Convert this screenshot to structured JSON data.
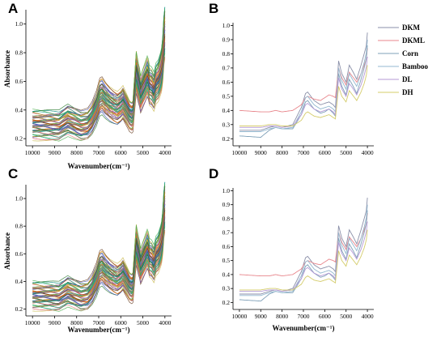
{
  "chart_data": [
    {
      "panel": "A",
      "type": "line",
      "xlabel": "Wavenumber(cm⁻¹)",
      "ylabel": "Absorbance",
      "xlim": [
        10300,
        3700
      ],
      "ylim": [
        0.15,
        1.1
      ],
      "xticks": [
        10000,
        9000,
        8000,
        7000,
        6000,
        5000,
        4000
      ],
      "yticks": [
        0.2,
        0.4,
        0.6,
        0.8,
        1.0
      ],
      "ytick_labels": [
        "0.2",
        "0.4",
        "0.6",
        "0.8",
        "1.0"
      ],
      "profile": {
        "x": [
          10000,
          9300,
          8800,
          8600,
          8400,
          8250,
          8100,
          7800,
          7500,
          7300,
          7100,
          6950,
          6850,
          6700,
          6500,
          6300,
          6150,
          6000,
          5900,
          5800,
          5700,
          5600,
          5500,
          5450,
          5300,
          5200,
          5150,
          5100,
          4900,
          4800,
          4750,
          4700,
          4600,
          4500,
          4400,
          4300,
          4200,
          4150,
          4100,
          4050,
          4000
        ],
        "y": [
          0.29,
          0.285,
          0.28,
          0.3,
          0.32,
          0.31,
          0.3,
          0.28,
          0.29,
          0.33,
          0.4,
          0.48,
          0.49,
          0.46,
          0.43,
          0.41,
          0.4,
          0.42,
          0.44,
          0.41,
          0.38,
          0.35,
          0.34,
          0.35,
          0.66,
          0.58,
          0.55,
          0.5,
          0.58,
          0.62,
          0.6,
          0.56,
          0.55,
          0.52,
          0.58,
          0.6,
          0.65,
          0.68,
          0.75,
          0.88,
          0.94
        ]
      },
      "curve_count": 60,
      "offset_range": [
        -0.07,
        0.09
      ],
      "palette": [
        "#c9b84a",
        "#4caf50",
        "#2e7d32",
        "#6b4226",
        "#d64550",
        "#e57373",
        "#3f51b5",
        "#7e57c2",
        "#26a69a",
        "#8d6e63",
        "#ef6c00",
        "#9e9d24",
        "#00897b",
        "#5c6bc0"
      ]
    },
    {
      "panel": "B",
      "type": "line",
      "xlim": [
        10300,
        3700
      ],
      "ylim": [
        0.15,
        1.02
      ],
      "xticks": [
        10000,
        9000,
        8000,
        7000,
        6000,
        5000,
        4000
      ],
      "yticks": [
        0.2,
        0.3,
        0.4,
        0.5,
        0.6,
        0.7,
        0.8,
        0.9,
        1.0
      ],
      "ytick_labels": [
        "0.2",
        "0.3",
        "0.4",
        "0.5",
        "0.6",
        "0.7",
        "0.8",
        "0.9",
        "1.0"
      ],
      "legend_position": "top-right-outside",
      "series": [
        {
          "name": "DKM",
          "color": "#8a8fa8",
          "x": [
            10000,
            9000,
            8600,
            8300,
            8000,
            7500,
            7100,
            6900,
            6800,
            6500,
            6200,
            6000,
            5800,
            5600,
            5500,
            5350,
            5200,
            5000,
            4850,
            4700,
            4500,
            4300,
            4150,
            4050,
            4000
          ],
          "y": [
            0.26,
            0.26,
            0.28,
            0.29,
            0.28,
            0.3,
            0.42,
            0.52,
            0.53,
            0.47,
            0.44,
            0.45,
            0.46,
            0.44,
            0.42,
            0.75,
            0.66,
            0.6,
            0.72,
            0.68,
            0.62,
            0.72,
            0.8,
            0.86,
            0.95
          ]
        },
        {
          "name": "DKML",
          "color": "#e8868c",
          "x": [
            10000,
            9000,
            8600,
            8300,
            8000,
            7500,
            7100,
            6900,
            6800,
            6500,
            6200,
            6000,
            5800,
            5600,
            5500,
            5350,
            5200,
            5000,
            4850,
            4700,
            4500,
            4300,
            4150,
            4050,
            4000
          ],
          "y": [
            0.4,
            0.39,
            0.39,
            0.4,
            0.39,
            0.4,
            0.44,
            0.49,
            0.5,
            0.48,
            0.47,
            0.49,
            0.51,
            0.5,
            0.49,
            0.7,
            0.63,
            0.58,
            0.67,
            0.64,
            0.6,
            0.66,
            0.72,
            0.77,
            0.84
          ]
        },
        {
          "name": "Corn",
          "color": "#7fa0b8",
          "x": [
            10000,
            9000,
            8600,
            8300,
            8000,
            7500,
            7100,
            6900,
            6800,
            6500,
            6200,
            6000,
            5800,
            5600,
            5500,
            5350,
            5200,
            5000,
            4850,
            4700,
            4500,
            4300,
            4150,
            4050,
            4000
          ],
          "y": [
            0.22,
            0.21,
            0.26,
            0.28,
            0.27,
            0.27,
            0.37,
            0.46,
            0.47,
            0.41,
            0.38,
            0.39,
            0.41,
            0.38,
            0.36,
            0.66,
            0.57,
            0.51,
            0.62,
            0.58,
            0.52,
            0.62,
            0.7,
            0.77,
            0.86
          ]
        },
        {
          "name": "Bamboo",
          "color": "#93b8d0",
          "x": [
            10000,
            9000,
            8600,
            8300,
            8000,
            7500,
            7100,
            6900,
            6800,
            6500,
            6200,
            6000,
            5800,
            5600,
            5500,
            5350,
            5200,
            5000,
            4850,
            4700,
            4500,
            4300,
            4150,
            4050,
            4000
          ],
          "y": [
            0.25,
            0.25,
            0.27,
            0.28,
            0.27,
            0.28,
            0.39,
            0.49,
            0.5,
            0.44,
            0.41,
            0.42,
            0.43,
            0.41,
            0.39,
            0.7,
            0.61,
            0.55,
            0.66,
            0.62,
            0.57,
            0.66,
            0.74,
            0.81,
            0.9
          ]
        },
        {
          "name": "DL",
          "color": "#b59ad6",
          "x": [
            10000,
            9000,
            8600,
            8300,
            8000,
            7500,
            7100,
            6900,
            6800,
            6500,
            6200,
            6000,
            5800,
            5600,
            5500,
            5350,
            5200,
            5000,
            4850,
            4700,
            4500,
            4300,
            4150,
            4050,
            4000
          ],
          "y": [
            0.28,
            0.28,
            0.29,
            0.29,
            0.28,
            0.29,
            0.37,
            0.44,
            0.45,
            0.41,
            0.39,
            0.4,
            0.41,
            0.39,
            0.37,
            0.63,
            0.55,
            0.5,
            0.59,
            0.56,
            0.51,
            0.58,
            0.65,
            0.71,
            0.78
          ]
        },
        {
          "name": "DH",
          "color": "#d4cc6a",
          "x": [
            10000,
            9000,
            8600,
            8300,
            8000,
            7500,
            7100,
            6900,
            6800,
            6500,
            6200,
            6000,
            5800,
            5600,
            5500,
            5350,
            5200,
            5000,
            4850,
            4700,
            4500,
            4300,
            4150,
            4050,
            4000
          ],
          "y": [
            0.29,
            0.29,
            0.3,
            0.3,
            0.29,
            0.29,
            0.33,
            0.38,
            0.39,
            0.36,
            0.35,
            0.36,
            0.37,
            0.35,
            0.34,
            0.57,
            0.5,
            0.46,
            0.54,
            0.51,
            0.47,
            0.53,
            0.59,
            0.65,
            0.72
          ]
        }
      ]
    },
    {
      "panel": "C",
      "type": "line",
      "xlabel": "Wavenumber(cm⁻¹)",
      "ylabel": "Absorbance",
      "xlim": [
        10300,
        3700
      ],
      "ylim": [
        0.15,
        1.1
      ],
      "xticks": [
        10000,
        9000,
        8000,
        7000,
        6000,
        5000,
        4000
      ],
      "yticks": [
        0.2,
        0.4,
        0.6,
        0.8,
        1.0
      ],
      "ytick_labels": [
        "0.2",
        "0.4",
        "0.6",
        "0.8",
        "1.0"
      ],
      "profile": {
        "x": [
          10000,
          9300,
          8800,
          8600,
          8400,
          8250,
          8100,
          7800,
          7500,
          7300,
          7100,
          6950,
          6850,
          6700,
          6500,
          6300,
          6150,
          6000,
          5900,
          5800,
          5700,
          5600,
          5500,
          5450,
          5300,
          5200,
          5150,
          5100,
          4900,
          4800,
          4750,
          4700,
          4600,
          4500,
          4400,
          4300,
          4200,
          4150,
          4100,
          4050,
          4000
        ],
        "y": [
          0.29,
          0.285,
          0.28,
          0.3,
          0.32,
          0.31,
          0.3,
          0.28,
          0.29,
          0.33,
          0.4,
          0.48,
          0.49,
          0.46,
          0.43,
          0.41,
          0.4,
          0.42,
          0.44,
          0.41,
          0.38,
          0.35,
          0.34,
          0.35,
          0.66,
          0.58,
          0.55,
          0.5,
          0.58,
          0.62,
          0.6,
          0.56,
          0.55,
          0.52,
          0.58,
          0.6,
          0.65,
          0.68,
          0.75,
          0.88,
          0.94
        ]
      },
      "curve_count": 60,
      "offset_range": [
        -0.07,
        0.09
      ],
      "palette": [
        "#c9b84a",
        "#4caf50",
        "#2e7d32",
        "#6b4226",
        "#d64550",
        "#e57373",
        "#3f51b5",
        "#7e57c2",
        "#26a69a",
        "#8d6e63",
        "#ef6c00",
        "#9e9d24",
        "#00897b",
        "#5c6bc0"
      ]
    },
    {
      "panel": "D",
      "type": "line",
      "xlabel": "Wavenumber(cm⁻¹)",
      "xlim": [
        10300,
        3700
      ],
      "ylim": [
        0.15,
        1.02
      ],
      "xticks": [
        10000,
        9000,
        8000,
        7000,
        6000,
        5000,
        4000
      ],
      "yticks": [
        0.2,
        0.3,
        0.4,
        0.5,
        0.6,
        0.7,
        0.8,
        0.9,
        1.0
      ],
      "ytick_labels": [
        "0.2",
        "0.3",
        "0.4",
        "0.5",
        "0.6",
        "0.7",
        "0.8",
        "0.9",
        "1.0"
      ],
      "series": [
        {
          "color": "#8a8fa8",
          "x": [
            10000,
            9000,
            8600,
            8300,
            8000,
            7500,
            7100,
            6900,
            6800,
            6500,
            6200,
            6000,
            5800,
            5600,
            5500,
            5350,
            5200,
            5000,
            4850,
            4700,
            4500,
            4300,
            4150,
            4050,
            4000
          ],
          "y": [
            0.26,
            0.26,
            0.28,
            0.29,
            0.28,
            0.3,
            0.42,
            0.52,
            0.53,
            0.47,
            0.44,
            0.45,
            0.46,
            0.44,
            0.42,
            0.75,
            0.66,
            0.6,
            0.72,
            0.68,
            0.62,
            0.72,
            0.8,
            0.86,
            0.95
          ]
        },
        {
          "color": "#e8868c",
          "x": [
            10000,
            9000,
            8600,
            8300,
            8000,
            7500,
            7100,
            6900,
            6800,
            6500,
            6200,
            6000,
            5800,
            5600,
            5500,
            5350,
            5200,
            5000,
            4850,
            4700,
            4500,
            4300,
            4150,
            4050,
            4000
          ],
          "y": [
            0.4,
            0.39,
            0.39,
            0.4,
            0.39,
            0.4,
            0.44,
            0.49,
            0.5,
            0.48,
            0.47,
            0.49,
            0.51,
            0.5,
            0.49,
            0.7,
            0.63,
            0.58,
            0.67,
            0.64,
            0.6,
            0.66,
            0.72,
            0.77,
            0.84
          ]
        },
        {
          "color": "#7fa0b8",
          "x": [
            10000,
            9000,
            8600,
            8300,
            8000,
            7500,
            7100,
            6900,
            6800,
            6500,
            6200,
            6000,
            5800,
            5600,
            5500,
            5350,
            5200,
            5000,
            4850,
            4700,
            4500,
            4300,
            4150,
            4050,
            4000
          ],
          "y": [
            0.22,
            0.21,
            0.26,
            0.28,
            0.27,
            0.27,
            0.37,
            0.46,
            0.47,
            0.41,
            0.38,
            0.39,
            0.41,
            0.38,
            0.36,
            0.66,
            0.57,
            0.51,
            0.62,
            0.58,
            0.52,
            0.62,
            0.7,
            0.77,
            0.86
          ]
        },
        {
          "color": "#93b8d0",
          "x": [
            10000,
            9000,
            8600,
            8300,
            8000,
            7500,
            7100,
            6900,
            6800,
            6500,
            6200,
            6000,
            5800,
            5600,
            5500,
            5350,
            5200,
            5000,
            4850,
            4700,
            4500,
            4300,
            4150,
            4050,
            4000
          ],
          "y": [
            0.25,
            0.25,
            0.27,
            0.28,
            0.27,
            0.28,
            0.39,
            0.49,
            0.5,
            0.44,
            0.41,
            0.42,
            0.43,
            0.41,
            0.39,
            0.7,
            0.61,
            0.55,
            0.66,
            0.62,
            0.57,
            0.66,
            0.74,
            0.81,
            0.9
          ]
        },
        {
          "color": "#b59ad6",
          "x": [
            10000,
            9000,
            8600,
            8300,
            8000,
            7500,
            7100,
            6900,
            6800,
            6500,
            6200,
            6000,
            5800,
            5600,
            5500,
            5350,
            5200,
            5000,
            4850,
            4700,
            4500,
            4300,
            4150,
            4050,
            4000
          ],
          "y": [
            0.28,
            0.28,
            0.29,
            0.29,
            0.28,
            0.29,
            0.37,
            0.44,
            0.45,
            0.41,
            0.39,
            0.4,
            0.41,
            0.39,
            0.37,
            0.63,
            0.55,
            0.5,
            0.59,
            0.56,
            0.51,
            0.58,
            0.65,
            0.71,
            0.78
          ]
        },
        {
          "color": "#d4cc6a",
          "x": [
            10000,
            9000,
            8600,
            8300,
            8000,
            7500,
            7100,
            6900,
            6800,
            6500,
            6200,
            6000,
            5800,
            5600,
            5500,
            5350,
            5200,
            5000,
            4850,
            4700,
            4500,
            4300,
            4150,
            4050,
            4000
          ],
          "y": [
            0.29,
            0.29,
            0.3,
            0.3,
            0.29,
            0.29,
            0.33,
            0.38,
            0.39,
            0.36,
            0.35,
            0.36,
            0.37,
            0.35,
            0.34,
            0.57,
            0.5,
            0.46,
            0.54,
            0.51,
            0.47,
            0.53,
            0.59,
            0.65,
            0.72
          ]
        }
      ]
    }
  ]
}
